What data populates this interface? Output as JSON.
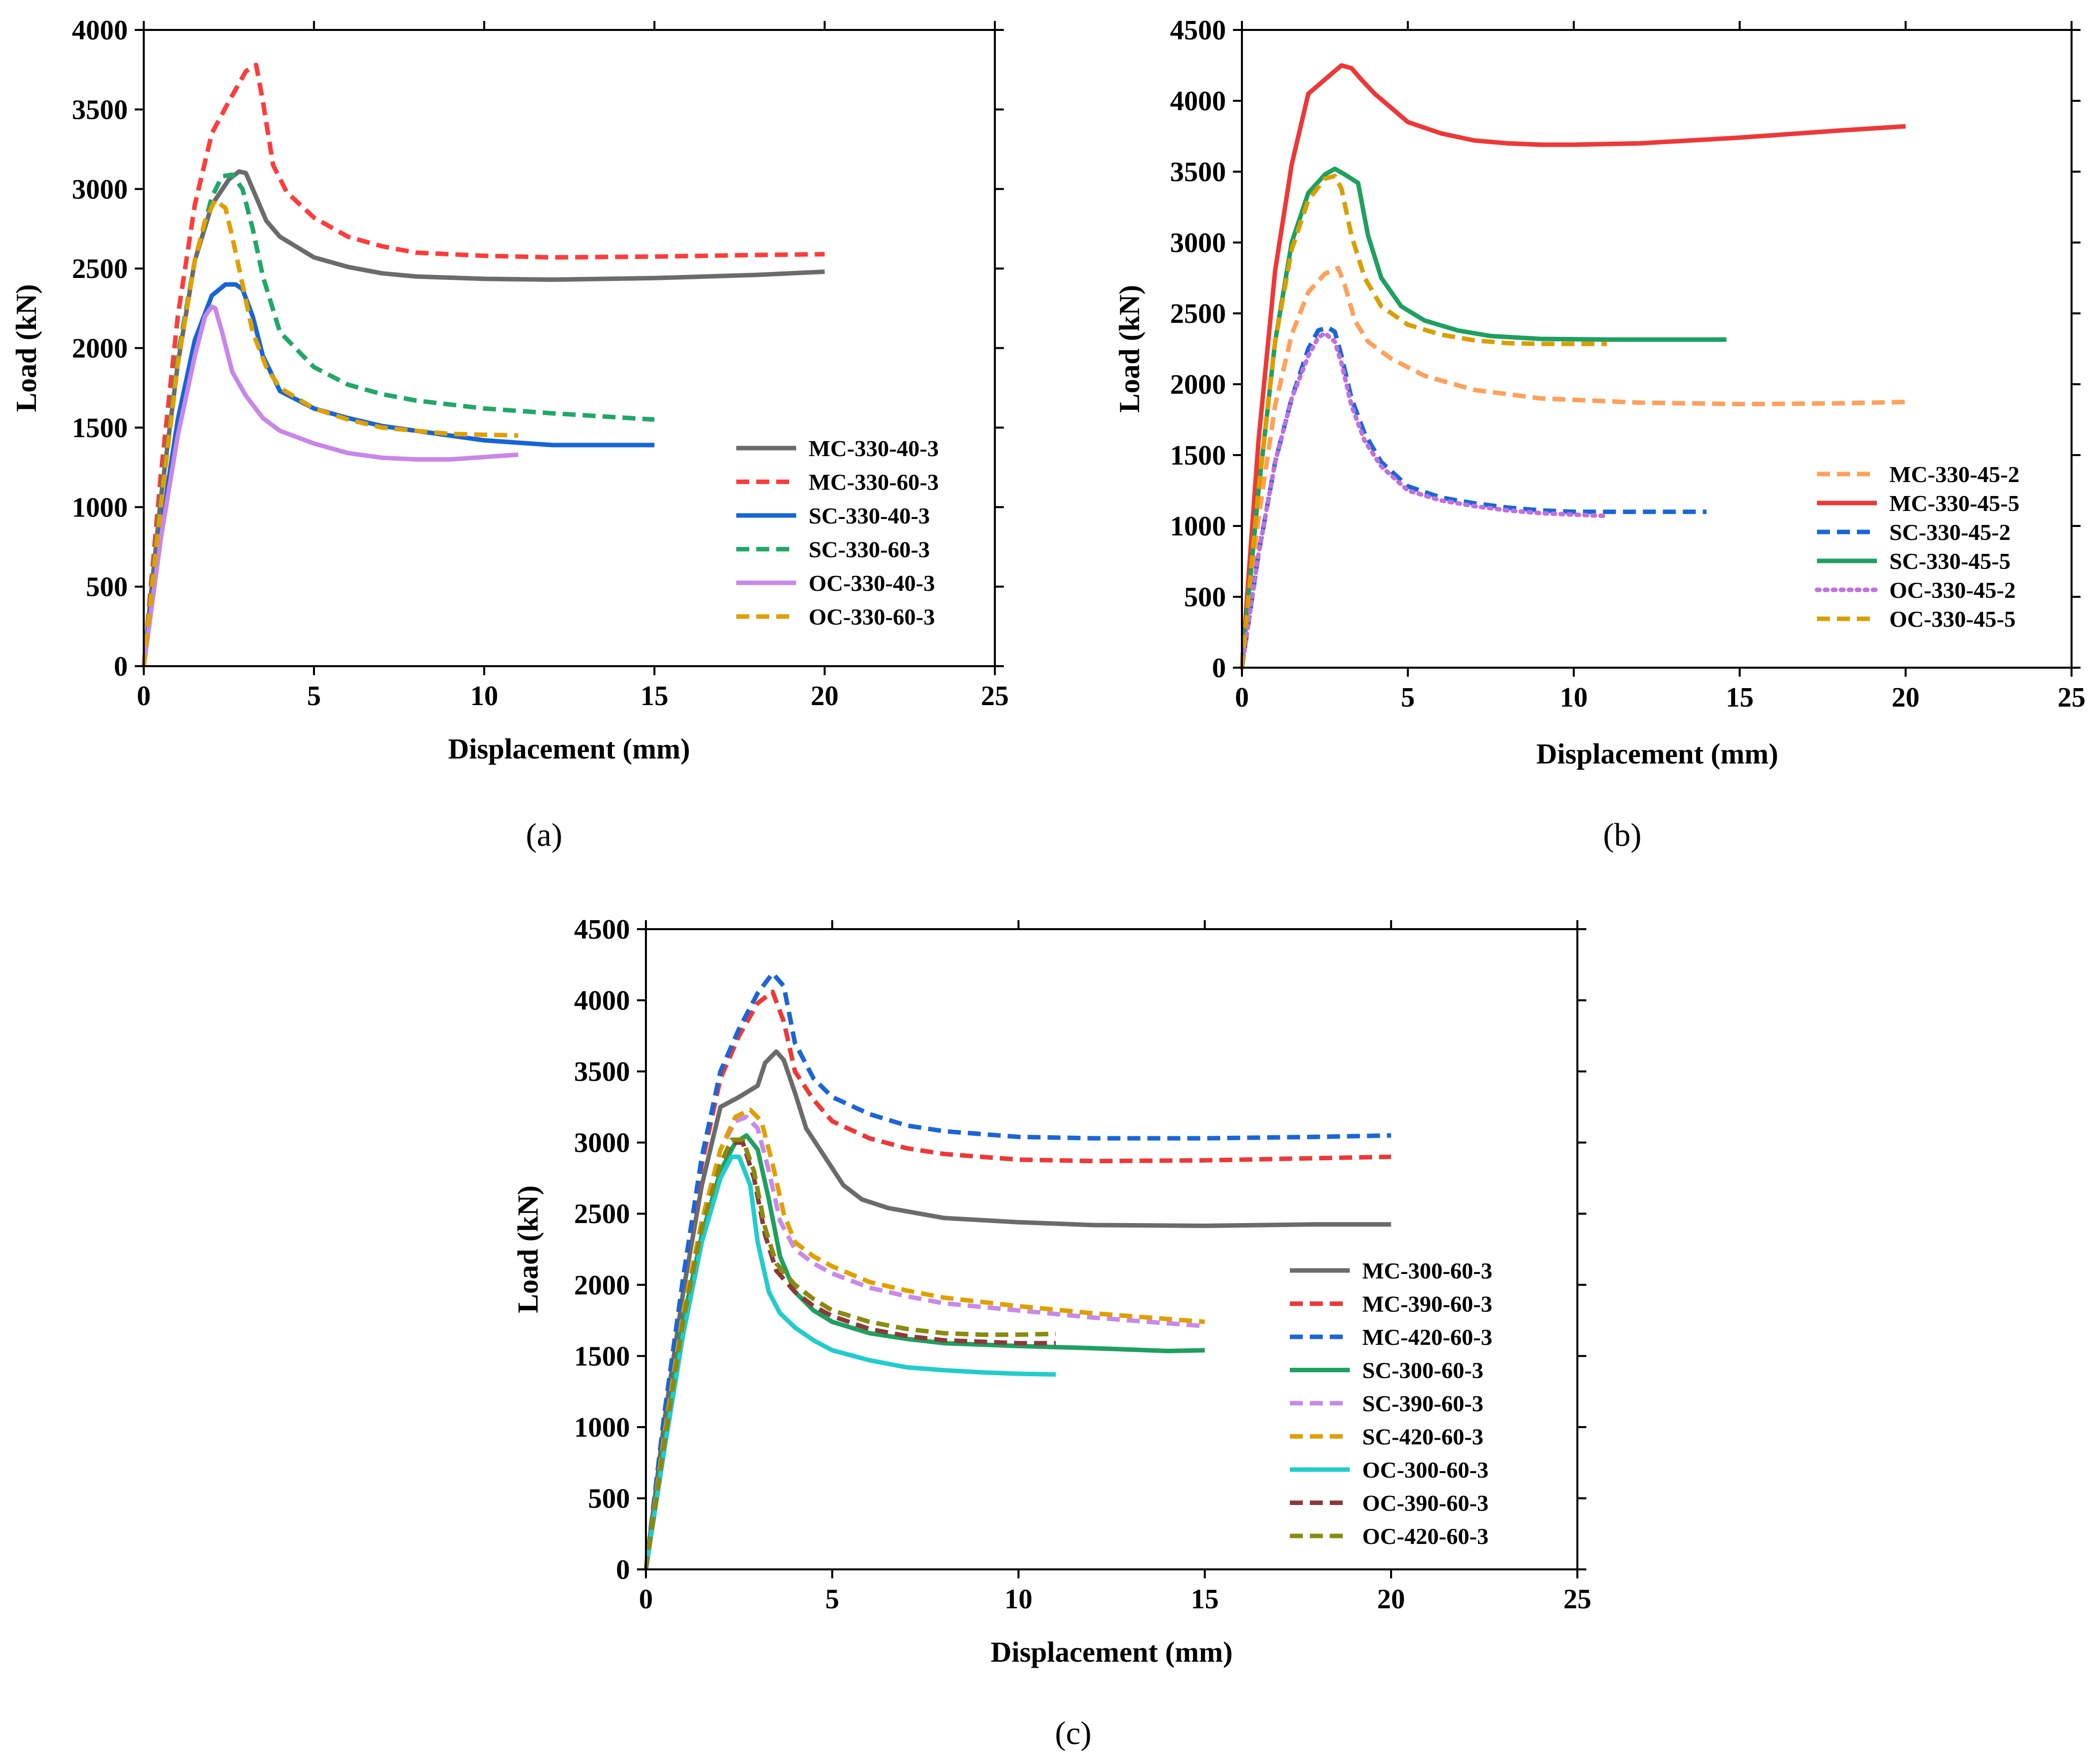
{
  "chart_data": [
    {
      "type": "line",
      "caption": "(a)",
      "xlabel": "Displacement (mm)",
      "ylabel": "Load (kN)",
      "xlim": [
        0,
        25
      ],
      "ylim": [
        0,
        4000
      ],
      "xticks": [
        0,
        5,
        10,
        15,
        20,
        25
      ],
      "yticks": [
        0,
        500,
        1000,
        1500,
        2000,
        2500,
        3000,
        3500,
        4000
      ],
      "grid": false,
      "legend_position": "bottom-right",
      "series": [
        {
          "name": "MC-330-40-3",
          "color": "#6b6b6b",
          "dash": "solid",
          "x": [
            0,
            0.5,
            1.0,
            1.5,
            2.0,
            2.5,
            2.8,
            3.0,
            3.3,
            3.6,
            4.0,
            5.0,
            6.0,
            7.0,
            8.0,
            10.0,
            12.0,
            15.0,
            18.0,
            20.0
          ],
          "y": [
            0,
            1050,
            1900,
            2550,
            2900,
            3060,
            3110,
            3100,
            2950,
            2800,
            2700,
            2570,
            2510,
            2470,
            2450,
            2435,
            2430,
            2440,
            2460,
            2480
          ]
        },
        {
          "name": "MC-330-60-3",
          "color": "#ff3b3b",
          "dash": "dashed",
          "x": [
            0,
            0.5,
            1.0,
            1.5,
            2.0,
            2.5,
            3.0,
            3.3,
            3.5,
            3.8,
            4.2,
            5.0,
            6.0,
            7.0,
            8.0,
            10.0,
            12.0,
            15.0,
            18.0,
            20.0
          ],
          "y": [
            0,
            1200,
            2200,
            2900,
            3350,
            3550,
            3740,
            3780,
            3550,
            3150,
            2980,
            2820,
            2700,
            2640,
            2600,
            2580,
            2570,
            2575,
            2585,
            2590
          ]
        },
        {
          "name": "SC-330-40-3",
          "color": "#1565d8",
          "dash": "solid",
          "x": [
            0,
            0.5,
            1.0,
            1.5,
            2.0,
            2.4,
            2.7,
            2.9,
            3.2,
            3.5,
            4.0,
            5.0,
            6.0,
            7.0,
            8.0,
            10.0,
            12.0,
            15.0
          ],
          "y": [
            0,
            850,
            1550,
            2050,
            2330,
            2400,
            2400,
            2370,
            2200,
            1950,
            1730,
            1620,
            1560,
            1510,
            1480,
            1420,
            1390,
            1390
          ]
        },
        {
          "name": "SC-330-60-3",
          "color": "#20a868",
          "dash": "dashed",
          "x": [
            0,
            0.5,
            1.0,
            1.5,
            2.0,
            2.3,
            2.6,
            2.9,
            3.2,
            3.5,
            4.0,
            5.0,
            6.0,
            7.0,
            8.0,
            10.0,
            12.0,
            15.0
          ],
          "y": [
            0,
            1050,
            1950,
            2550,
            2950,
            3080,
            3090,
            3000,
            2750,
            2450,
            2100,
            1880,
            1770,
            1710,
            1670,
            1620,
            1590,
            1550
          ]
        },
        {
          "name": "OC-330-40-3",
          "color": "#c887e8",
          "dash": "solid",
          "x": [
            0,
            0.5,
            1.0,
            1.5,
            1.8,
            2.0,
            2.1,
            2.3,
            2.6,
            3.0,
            3.5,
            4.0,
            5.0,
            6.0,
            7.0,
            8.0,
            9.0,
            11.0
          ],
          "y": [
            0,
            800,
            1450,
            1950,
            2200,
            2260,
            2250,
            2100,
            1850,
            1700,
            1560,
            1480,
            1400,
            1340,
            1310,
            1300,
            1300,
            1330
          ]
        },
        {
          "name": "OC-330-60-3",
          "color": "#e0a000",
          "dash": "dashed",
          "x": [
            0,
            0.5,
            1.0,
            1.5,
            1.8,
            2.1,
            2.4,
            2.6,
            2.9,
            3.2,
            3.6,
            4.0,
            5.0,
            6.0,
            7.0,
            8.0,
            9.0,
            11.0
          ],
          "y": [
            0,
            1000,
            1900,
            2550,
            2800,
            2930,
            2880,
            2700,
            2400,
            2100,
            1880,
            1750,
            1620,
            1550,
            1500,
            1480,
            1460,
            1450
          ]
        }
      ]
    },
    {
      "type": "line",
      "caption": "(b)",
      "xlabel": "Displacement (mm)",
      "ylabel": "Load (kN)",
      "xlim": [
        0,
        25
      ],
      "ylim": [
        0,
        4500
      ],
      "xticks": [
        0,
        5,
        10,
        15,
        20,
        25
      ],
      "yticks": [
        0,
        500,
        1000,
        1500,
        2000,
        2500,
        3000,
        3500,
        4000,
        4500
      ],
      "grid": false,
      "legend_position": "bottom-right",
      "series": [
        {
          "name": "MC-330-45-2",
          "color": "#ffa05a",
          "dash": "dashed",
          "x": [
            0,
            0.5,
            1.0,
            1.5,
            2.0,
            2.5,
            2.9,
            3.1,
            3.4,
            3.8,
            4.5,
            5.5,
            7.0,
            9.0,
            12.0,
            15.0,
            18.0,
            20.0
          ],
          "y": [
            0,
            1050,
            1850,
            2350,
            2650,
            2780,
            2820,
            2700,
            2450,
            2300,
            2180,
            2060,
            1960,
            1900,
            1870,
            1860,
            1865,
            1875
          ]
        },
        {
          "name": "MC-330-45-5",
          "color": "#ee3838",
          "dash": "solid",
          "x": [
            0,
            0.5,
            1.0,
            1.5,
            2.0,
            2.5,
            3.0,
            3.3,
            3.6,
            4.0,
            4.5,
            5.0,
            6.0,
            7.0,
            8.0,
            9.0,
            10.0,
            12.0,
            15.0,
            18.0,
            20.0
          ],
          "y": [
            0,
            1600,
            2800,
            3550,
            4050,
            4150,
            4250,
            4230,
            4150,
            4050,
            3950,
            3850,
            3770,
            3720,
            3700,
            3690,
            3690,
            3700,
            3740,
            3790,
            3820
          ]
        },
        {
          "name": "SC-330-45-2",
          "color": "#1a66d6",
          "dash": "dashed",
          "x": [
            0,
            0.5,
            1.0,
            1.5,
            2.0,
            2.3,
            2.6,
            2.8,
            3.0,
            3.3,
            3.7,
            4.2,
            5.0,
            6.0,
            7.0,
            8.0,
            9.0,
            10.0,
            12.0,
            14.0
          ],
          "y": [
            0,
            800,
            1450,
            1900,
            2250,
            2380,
            2400,
            2370,
            2200,
            1900,
            1650,
            1450,
            1280,
            1200,
            1160,
            1130,
            1110,
            1100,
            1100,
            1100
          ]
        },
        {
          "name": "SC-330-45-5",
          "color": "#1ea060",
          "dash": "solid",
          "x": [
            0,
            0.5,
            1.0,
            1.5,
            2.0,
            2.5,
            2.8,
            3.1,
            3.5,
            3.8,
            4.2,
            4.8,
            5.5,
            6.5,
            7.5,
            9.0,
            11.0,
            13.0,
            14.6
          ],
          "y": [
            0,
            1250,
            2300,
            3000,
            3350,
            3480,
            3520,
            3480,
            3420,
            3050,
            2750,
            2550,
            2450,
            2380,
            2340,
            2320,
            2315,
            2315,
            2315
          ]
        },
        {
          "name": "OC-330-45-2",
          "color": "#c070e0",
          "dash": "dotted",
          "x": [
            0,
            0.5,
            1.0,
            1.5,
            2.0,
            2.3,
            2.5,
            2.8,
            3.0,
            3.3,
            3.7,
            4.2,
            5.0,
            6.0,
            7.0,
            8.0,
            9.0,
            10.0,
            11.0
          ],
          "y": [
            0,
            800,
            1450,
            1900,
            2200,
            2330,
            2360,
            2300,
            2150,
            1850,
            1600,
            1420,
            1250,
            1180,
            1140,
            1110,
            1090,
            1080,
            1070
          ]
        },
        {
          "name": "OC-330-45-5",
          "color": "#d7a000",
          "dash": "dashed",
          "x": [
            0,
            0.5,
            1.0,
            1.5,
            2.0,
            2.5,
            2.8,
            3.0,
            3.3,
            3.7,
            4.2,
            5.0,
            6.0,
            7.0,
            8.0,
            9.0,
            11.0
          ],
          "y": [
            0,
            1250,
            2300,
            2950,
            3300,
            3450,
            3470,
            3380,
            3050,
            2750,
            2550,
            2420,
            2350,
            2310,
            2290,
            2285,
            2285
          ]
        }
      ]
    },
    {
      "type": "line",
      "caption": "(c)",
      "xlabel": "Displacement (mm)",
      "ylabel": "Load (kN)",
      "xlim": [
        0,
        25
      ],
      "ylim": [
        0,
        4500
      ],
      "xticks": [
        0,
        5,
        10,
        15,
        20,
        25
      ],
      "yticks": [
        0,
        500,
        1000,
        1500,
        2000,
        2500,
        3000,
        3500,
        4000,
        4500
      ],
      "grid": false,
      "legend_position": "bottom-right",
      "series": [
        {
          "name": "MC-300-60-3",
          "color": "#6b6b6b",
          "dash": "solid",
          "x": [
            0,
            0.5,
            1.0,
            1.5,
            2.0,
            2.5,
            3.0,
            3.2,
            3.5,
            3.7,
            4.0,
            4.3,
            4.8,
            5.3,
            5.8,
            6.5,
            8.0,
            10.0,
            12.0,
            15.0,
            18.0,
            20.0
          ],
          "y": [
            0,
            1050,
            1950,
            2700,
            3250,
            3320,
            3400,
            3560,
            3640,
            3580,
            3350,
            3100,
            2900,
            2700,
            2600,
            2540,
            2470,
            2440,
            2420,
            2415,
            2425,
            2425
          ]
        },
        {
          "name": "MC-390-60-3",
          "color": "#ee3838",
          "dash": "dashed",
          "x": [
            0,
            0.5,
            1.0,
            1.5,
            2.0,
            2.5,
            3.0,
            3.4,
            3.7,
            4.0,
            4.5,
            5.0,
            6.0,
            7.0,
            8.0,
            10.0,
            12.0,
            15.0,
            18.0,
            20.0
          ],
          "y": [
            0,
            1100,
            2050,
            2850,
            3450,
            3750,
            3980,
            4060,
            3850,
            3500,
            3300,
            3150,
            3030,
            2960,
            2920,
            2880,
            2870,
            2875,
            2890,
            2900
          ]
        },
        {
          "name": "MC-420-60-3",
          "color": "#1a66d6",
          "dash": "dashed",
          "x": [
            0,
            0.5,
            1.0,
            1.5,
            2.0,
            2.5,
            3.0,
            3.4,
            3.7,
            4.0,
            4.5,
            5.0,
            6.0,
            7.0,
            8.0,
            10.0,
            12.0,
            15.0,
            18.0,
            20.0
          ],
          "y": [
            0,
            1100,
            2050,
            2900,
            3500,
            3800,
            4050,
            4190,
            4100,
            3700,
            3450,
            3320,
            3200,
            3120,
            3080,
            3040,
            3030,
            3030,
            3040,
            3050
          ]
        },
        {
          "name": "SC-300-60-3",
          "color": "#1ea060",
          "dash": "solid",
          "x": [
            0,
            0.5,
            1.0,
            1.5,
            2.0,
            2.4,
            2.7,
            3.0,
            3.3,
            3.6,
            4.0,
            4.5,
            5.0,
            6.0,
            7.0,
            8.0,
            10.0,
            12.0,
            14.0,
            15.0
          ],
          "y": [
            0,
            900,
            1750,
            2350,
            2800,
            3000,
            3050,
            2950,
            2600,
            2200,
            1950,
            1820,
            1740,
            1660,
            1620,
            1590,
            1570,
            1555,
            1535,
            1540
          ]
        },
        {
          "name": "SC-390-60-3",
          "color": "#c88ae8",
          "dash": "dashed",
          "x": [
            0,
            0.5,
            1.0,
            1.5,
            2.0,
            2.4,
            2.7,
            3.0,
            3.3,
            3.6,
            4.0,
            4.5,
            5.0,
            6.0,
            7.0,
            8.0,
            10.0,
            12.0,
            14.0,
            15.0
          ],
          "y": [
            0,
            950,
            1800,
            2450,
            2950,
            3150,
            3180,
            3100,
            2800,
            2450,
            2250,
            2150,
            2080,
            1980,
            1920,
            1870,
            1820,
            1770,
            1730,
            1710
          ]
        },
        {
          "name": "SC-420-60-3",
          "color": "#e0a000",
          "dash": "dashed",
          "x": [
            0,
            0.5,
            1.0,
            1.5,
            2.0,
            2.4,
            2.8,
            3.1,
            3.4,
            3.7,
            4.0,
            4.5,
            5.0,
            6.0,
            7.0,
            8.0,
            10.0,
            12.0,
            14.0,
            15.0
          ],
          "y": [
            0,
            950,
            1800,
            2450,
            2950,
            3180,
            3230,
            3150,
            2850,
            2500,
            2300,
            2200,
            2130,
            2020,
            1960,
            1910,
            1850,
            1800,
            1760,
            1740
          ]
        },
        {
          "name": "OC-300-60-3",
          "color": "#22cccc",
          "dash": "solid",
          "x": [
            0,
            0.5,
            1.0,
            1.5,
            2.0,
            2.3,
            2.5,
            2.8,
            3.0,
            3.3,
            3.6,
            4.0,
            4.5,
            5.0,
            6.0,
            7.0,
            8.0,
            9.0,
            10.0,
            11.0
          ],
          "y": [
            0,
            850,
            1650,
            2300,
            2750,
            2900,
            2900,
            2700,
            2300,
            1950,
            1800,
            1700,
            1610,
            1540,
            1470,
            1420,
            1400,
            1385,
            1375,
            1370
          ]
        },
        {
          "name": "OC-390-60-3",
          "color": "#8a3a3a",
          "dash": "dashed",
          "x": [
            0,
            0.5,
            1.0,
            1.5,
            2.0,
            2.3,
            2.6,
            2.9,
            3.2,
            3.5,
            4.0,
            4.5,
            5.0,
            6.0,
            7.0,
            8.0,
            9.0,
            10.0,
            11.0
          ],
          "y": [
            0,
            900,
            1750,
            2400,
            2850,
            3000,
            3000,
            2750,
            2350,
            2100,
            1950,
            1850,
            1780,
            1690,
            1640,
            1610,
            1600,
            1590,
            1590
          ]
        },
        {
          "name": "OC-420-60-3",
          "color": "#8a8a10",
          "dash": "dashed",
          "x": [
            0,
            0.5,
            1.0,
            1.5,
            2.0,
            2.3,
            2.6,
            2.9,
            3.2,
            3.5,
            4.0,
            4.5,
            5.0,
            6.0,
            7.0,
            8.0,
            9.0,
            10.0,
            11.0
          ],
          "y": [
            0,
            900,
            1750,
            2400,
            2850,
            3020,
            3020,
            2800,
            2400,
            2150,
            2000,
            1900,
            1820,
            1740,
            1690,
            1660,
            1650,
            1650,
            1655
          ]
        }
      ]
    }
  ]
}
